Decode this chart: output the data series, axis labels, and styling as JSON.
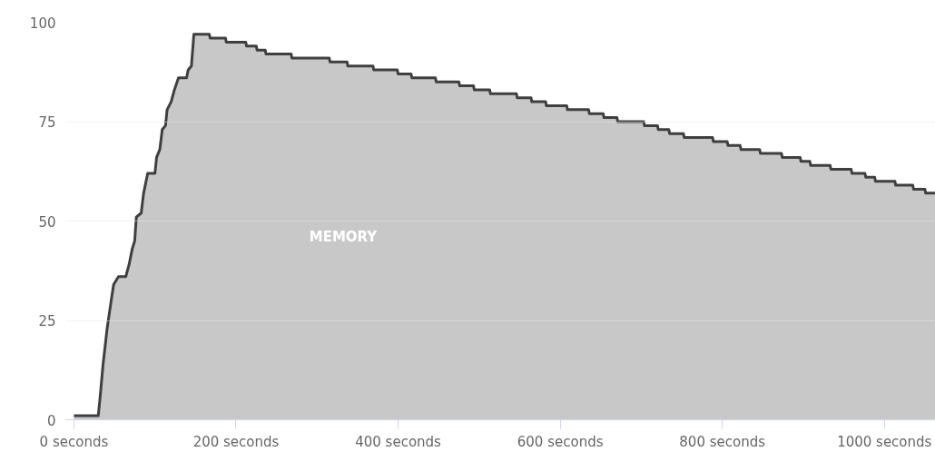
{
  "chart_data": {
    "type": "area",
    "x": [
      0,
      30,
      32,
      36,
      41,
      46,
      49,
      55,
      64,
      68,
      72,
      75,
      77,
      83,
      86,
      91,
      100,
      102,
      106,
      109,
      113,
      115,
      120,
      124,
      129,
      139,
      141,
      145,
      148,
      167,
      168,
      187,
      188,
      212,
      213,
      225,
      226,
      236,
      237,
      268,
      269,
      315,
      316,
      337,
      338,
      369,
      370,
      399,
      400,
      416,
      417,
      446,
      447,
      475,
      476,
      493,
      494,
      513,
      514,
      546,
      547,
      564,
      565,
      582,
      583,
      608,
      609,
      635,
      636,
      653,
      654,
      670,
      671,
      703,
      704,
      720,
      721,
      734,
      735,
      752,
      753,
      788,
      789,
      806,
      807,
      822,
      823,
      846,
      847,
      873,
      874,
      896,
      897,
      908,
      909,
      933,
      934,
      959,
      960,
      976,
      977,
      988,
      989,
      1013,
      1014,
      1035,
      1036,
      1050,
      1051,
      1063
    ],
    "series": [
      {
        "name": "MEMORY",
        "color": "#c8c8c8",
        "values": [
          1,
          1,
          5,
          14,
          23,
          30,
          34,
          36,
          36,
          39,
          43,
          45,
          51,
          52,
          57,
          62,
          62,
          66,
          68,
          73,
          74,
          78,
          80,
          83,
          86,
          86,
          88,
          89,
          97,
          97,
          96,
          96,
          95,
          95,
          94,
          94,
          93,
          93,
          92,
          92,
          91,
          91,
          90,
          90,
          89,
          89,
          88,
          88,
          87,
          87,
          86,
          86,
          85,
          85,
          84,
          84,
          83,
          83,
          82,
          82,
          81,
          81,
          80,
          80,
          79,
          79,
          78,
          78,
          77,
          77,
          76,
          76,
          75,
          75,
          74,
          74,
          73,
          73,
          72,
          72,
          71,
          71,
          70,
          70,
          69,
          69,
          68,
          68,
          67,
          67,
          66,
          66,
          65,
          65,
          64,
          64,
          63,
          63,
          62,
          62,
          61,
          61,
          60,
          60,
          59,
          59,
          58,
          58,
          57,
          57
        ]
      }
    ],
    "xlim": [
      -10,
      1063
    ],
    "xticks": [
      {
        "value": 0,
        "label": "0 seconds"
      },
      {
        "value": 200,
        "label": "200 seconds"
      },
      {
        "value": 400,
        "label": "400 seconds"
      },
      {
        "value": 600,
        "label": "600 seconds"
      },
      {
        "value": 800,
        "label": "800 seconds"
      },
      {
        "value": 1000,
        "label": "1000 seconds"
      }
    ],
    "ylim": [
      0,
      100
    ],
    "yticks": [
      0,
      25,
      50,
      75,
      100
    ],
    "grid": "y"
  }
}
